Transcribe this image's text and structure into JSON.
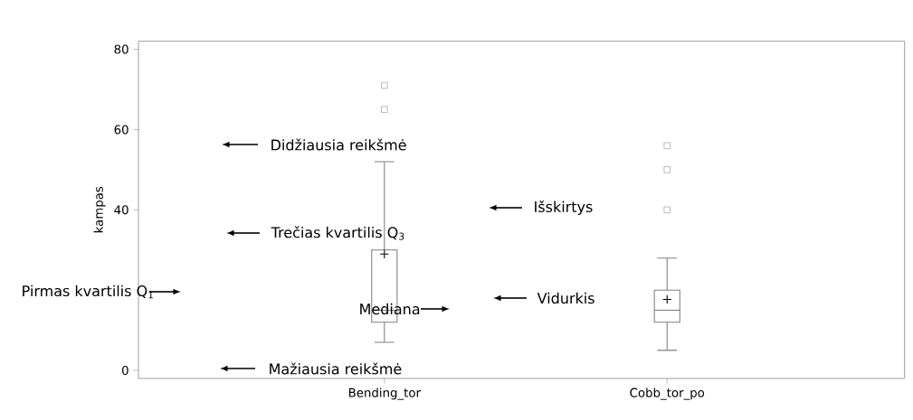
{
  "chart_data": {
    "type": "box",
    "ylabel": "kampas",
    "categories": [
      "Bending_tor",
      "Cobb_tor_po"
    ],
    "boxes": [
      {
        "low": 7,
        "q1": 12,
        "median": 15,
        "q3": 30,
        "high": 52,
        "mean": 29,
        "outliers": [
          71,
          65
        ]
      },
      {
        "low": 5,
        "q1": 12,
        "median": 15,
        "q3": 20,
        "high": 28,
        "mean": 17.7,
        "outliers": [
          56,
          50,
          40
        ]
      }
    ],
    "color": "#808080",
    "marker": "square",
    "ylim": [
      -2,
      82
    ],
    "yticks": [
      0,
      40,
      60,
      80
    ],
    "annotations": [
      "Didžiausia reikšmė",
      "Trečias kvartilis Q$_{3}$",
      "Pirmas kvartilis Q$_{1}$",
      "Mediana",
      "Mažiausia reikšmė",
      "Išskirtys",
      "Vidurkis"
    ]
  }
}
